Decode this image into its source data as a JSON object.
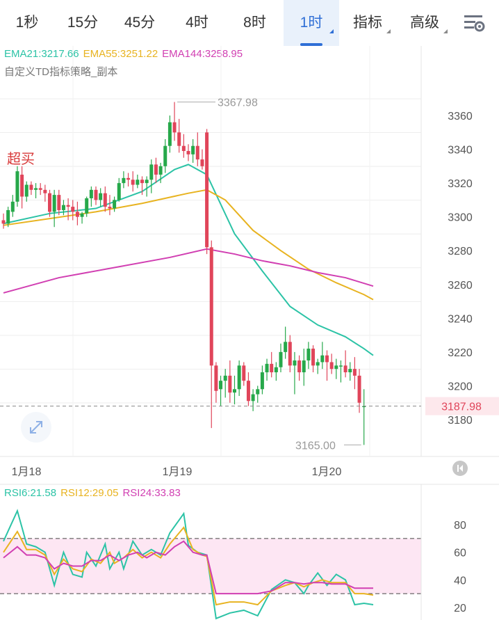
{
  "tabs": [
    {
      "label": "1秒",
      "active": false,
      "dropdown": false
    },
    {
      "label": "15分",
      "active": false,
      "dropdown": false
    },
    {
      "label": "45分",
      "active": false,
      "dropdown": false
    },
    {
      "label": "4时",
      "active": false,
      "dropdown": false
    },
    {
      "label": "8时",
      "active": false,
      "dropdown": false
    },
    {
      "label": "1时",
      "active": true,
      "dropdown": true
    },
    {
      "label": "指标",
      "active": false,
      "dropdown": true
    },
    {
      "label": "高级",
      "active": false,
      "dropdown": true
    }
  ],
  "settings_icon": "settings-sliders-icon",
  "ema_legend": [
    {
      "label": "EMA21:3217.66",
      "color": "#2cc3a6"
    },
    {
      "label": "EMA55:3251.22",
      "color": "#e8b320"
    },
    {
      "label": "EMA144:3258.95",
      "color": "#d13fb2"
    }
  ],
  "strategy_label": "自定义TD指标策略_副本",
  "signal_label": "超买",
  "rsi_legend": [
    {
      "label": "RSI6:21.58",
      "color": "#2cc3a6"
    },
    {
      "label": "RSI12:29.05",
      "color": "#e8b320"
    },
    {
      "label": "RSI24:33.83",
      "color": "#d13fb2"
    }
  ],
  "colors": {
    "up": "#26a84a",
    "down": "#e0455a"
  },
  "chart_data": {
    "type": "candlestick",
    "price_axis": {
      "ticks": [
        "3360",
        "3340",
        "3320",
        "3300",
        "3280",
        "3260",
        "3240",
        "3220",
        "3200",
        "3180"
      ],
      "range": [
        3168,
        3370
      ]
    },
    "x_ticks": [
      "1月18",
      "1月19",
      "1月20"
    ],
    "high_label": "3367.98",
    "low_label": "3165.00",
    "current_price": "3187.98",
    "candles": [
      [
        3298,
        3302,
        3293,
        3296
      ],
      [
        3296,
        3306,
        3294,
        3304
      ],
      [
        3303,
        3313,
        3300,
        3309
      ],
      [
        3309,
        3330,
        3306,
        3327
      ],
      [
        3325,
        3330,
        3305,
        3312
      ],
      [
        3312,
        3321,
        3309,
        3319
      ],
      [
        3319,
        3321,
        3313,
        3316
      ],
      [
        3316,
        3320,
        3311,
        3317
      ],
      [
        3317,
        3320,
        3313,
        3316
      ],
      [
        3316,
        3319,
        3309,
        3314
      ],
      [
        3314,
        3316,
        3300,
        3303
      ],
      [
        3303,
        3316,
        3294,
        3313
      ],
      [
        3313,
        3316,
        3301,
        3304
      ],
      [
        3304,
        3310,
        3301,
        3307
      ],
      [
        3307,
        3311,
        3298,
        3306
      ],
      [
        3306,
        3310,
        3298,
        3303
      ],
      [
        3303,
        3309,
        3295,
        3300
      ],
      [
        3300,
        3303,
        3296,
        3302
      ],
      [
        3302,
        3312,
        3300,
        3311
      ],
      [
        3311,
        3318,
        3306,
        3316
      ],
      [
        3316,
        3318,
        3307,
        3310
      ],
      [
        3310,
        3317,
        3306,
        3314
      ],
      [
        3314,
        3318,
        3303,
        3306
      ],
      [
        3306,
        3313,
        3301,
        3305
      ],
      [
        3305,
        3312,
        3303,
        3310
      ],
      [
        3310,
        3323,
        3309,
        3320
      ],
      [
        3320,
        3327,
        3317,
        3323
      ],
      [
        3323,
        3326,
        3318,
        3322
      ],
      [
        3322,
        3327,
        3315,
        3319
      ],
      [
        3319,
        3325,
        3317,
        3322
      ],
      [
        3322,
        3324,
        3313,
        3320
      ],
      [
        3320,
        3324,
        3312,
        3322
      ],
      [
        3322,
        3334,
        3314,
        3331
      ],
      [
        3331,
        3335,
        3320,
        3325
      ],
      [
        3325,
        3332,
        3320,
        3330
      ],
      [
        3330,
        3346,
        3326,
        3342
      ],
      [
        3342,
        3360,
        3338,
        3356
      ],
      [
        3356,
        3368,
        3345,
        3350
      ],
      [
        3350,
        3358,
        3338,
        3342
      ],
      [
        3342,
        3349,
        3335,
        3339
      ],
      [
        3339,
        3343,
        3333,
        3337
      ],
      [
        3337,
        3346,
        3332,
        3342
      ],
      [
        3342,
        3350,
        3330,
        3334
      ],
      [
        3334,
        3340,
        3328,
        3330
      ],
      [
        3350,
        3352,
        3278,
        3282
      ],
      [
        3282,
        3286,
        3175,
        3212
      ],
      [
        3212,
        3214,
        3190,
        3197
      ],
      [
        3198,
        3206,
        3188,
        3203
      ],
      [
        3203,
        3210,
        3193,
        3206
      ],
      [
        3206,
        3215,
        3190,
        3196
      ],
      [
        3196,
        3206,
        3189,
        3198
      ],
      [
        3198,
        3215,
        3194,
        3212
      ],
      [
        3212,
        3214,
        3200,
        3203
      ],
      [
        3203,
        3208,
        3188,
        3191
      ],
      [
        3191,
        3198,
        3185,
        3195
      ],
      [
        3195,
        3200,
        3190,
        3198
      ],
      [
        3198,
        3212,
        3195,
        3208
      ],
      [
        3208,
        3216,
        3203,
        3213
      ],
      [
        3213,
        3220,
        3205,
        3208
      ],
      [
        3208,
        3214,
        3203,
        3211
      ],
      [
        3211,
        3225,
        3208,
        3220
      ],
      [
        3220,
        3235,
        3216,
        3226
      ],
      [
        3226,
        3230,
        3208,
        3212
      ],
      [
        3212,
        3220,
        3195,
        3215
      ],
      [
        3215,
        3218,
        3203,
        3208
      ],
      [
        3208,
        3222,
        3200,
        3215
      ],
      [
        3215,
        3226,
        3210,
        3222
      ],
      [
        3222,
        3224,
        3208,
        3212
      ],
      [
        3212,
        3216,
        3207,
        3214
      ],
      [
        3214,
        3226,
        3210,
        3218
      ],
      [
        3218,
        3221,
        3203,
        3214
      ],
      [
        3214,
        3219,
        3207,
        3210
      ],
      [
        3210,
        3216,
        3204,
        3212
      ],
      [
        3212,
        3215,
        3202,
        3212
      ],
      [
        3212,
        3221,
        3205,
        3208
      ],
      [
        3208,
        3214,
        3203,
        3210
      ],
      [
        3210,
        3217,
        3198,
        3206
      ],
      [
        3206,
        3210,
        3184,
        3190
      ],
      [
        3188,
        3198,
        3165,
        3188
      ]
    ],
    "ema": [
      {
        "name": "EMA21",
        "color": "#2cc3a6",
        "points": [
          [
            0,
            3296
          ],
          [
            10,
            3302
          ],
          [
            20,
            3305
          ],
          [
            30,
            3315
          ],
          [
            37,
            3328
          ],
          [
            40,
            3331
          ],
          [
            44,
            3325
          ],
          [
            50,
            3290
          ],
          [
            56,
            3268
          ],
          [
            62,
            3247
          ],
          [
            68,
            3236
          ],
          [
            74,
            3229
          ],
          [
            78,
            3222
          ],
          [
            80,
            3218
          ]
        ]
      },
      {
        "name": "EMA55",
        "color": "#e8b320",
        "points": [
          [
            0,
            3295
          ],
          [
            10,
            3299
          ],
          [
            20,
            3303
          ],
          [
            30,
            3308
          ],
          [
            40,
            3314
          ],
          [
            44,
            3316
          ],
          [
            48,
            3310
          ],
          [
            54,
            3292
          ],
          [
            60,
            3280
          ],
          [
            66,
            3269
          ],
          [
            72,
            3261
          ],
          [
            78,
            3254
          ],
          [
            80,
            3251
          ]
        ]
      },
      {
        "name": "EMA144",
        "color": "#d13fb2",
        "points": [
          [
            0,
            3255
          ],
          [
            12,
            3264
          ],
          [
            24,
            3270
          ],
          [
            36,
            3276
          ],
          [
            44,
            3281
          ],
          [
            50,
            3278
          ],
          [
            56,
            3274
          ],
          [
            62,
            3271
          ],
          [
            68,
            3267
          ],
          [
            74,
            3264
          ],
          [
            80,
            3259
          ]
        ]
      }
    ],
    "rsi_axis": {
      "ticks": [
        "80",
        "60",
        "40",
        "20"
      ],
      "range": [
        10,
        90
      ],
      "band": [
        30,
        70
      ]
    },
    "rsi": [
      {
        "name": "RSI6",
        "color": "#2cc3a6",
        "points": [
          [
            0,
            68
          ],
          [
            3,
            90
          ],
          [
            5,
            66
          ],
          [
            7,
            64
          ],
          [
            9,
            60
          ],
          [
            11,
            36
          ],
          [
            13,
            60
          ],
          [
            15,
            44
          ],
          [
            17,
            42
          ],
          [
            18,
            60
          ],
          [
            20,
            50
          ],
          [
            22,
            66
          ],
          [
            23,
            48
          ],
          [
            25,
            60
          ],
          [
            26,
            48
          ],
          [
            28,
            68
          ],
          [
            30,
            58
          ],
          [
            32,
            62
          ],
          [
            34,
            58
          ],
          [
            36,
            74
          ],
          [
            39,
            88
          ],
          [
            40,
            65
          ],
          [
            42,
            60
          ],
          [
            44,
            58
          ],
          [
            46,
            12
          ],
          [
            49,
            16
          ],
          [
            52,
            18
          ],
          [
            55,
            14
          ],
          [
            58,
            33
          ],
          [
            61,
            40
          ],
          [
            63,
            38
          ],
          [
            65,
            30
          ],
          [
            66,
            36
          ],
          [
            68,
            45
          ],
          [
            70,
            36
          ],
          [
            72,
            44
          ],
          [
            74,
            40
          ],
          [
            76,
            22
          ],
          [
            78,
            23
          ],
          [
            80,
            22
          ]
        ]
      },
      {
        "name": "RSI12",
        "color": "#e8b320",
        "points": [
          [
            0,
            60
          ],
          [
            3,
            75
          ],
          [
            5,
            62
          ],
          [
            7,
            62
          ],
          [
            9,
            58
          ],
          [
            11,
            44
          ],
          [
            13,
            55
          ],
          [
            15,
            48
          ],
          [
            17,
            46
          ],
          [
            19,
            55
          ],
          [
            21,
            52
          ],
          [
            23,
            60
          ],
          [
            24,
            52
          ],
          [
            26,
            56
          ],
          [
            28,
            62
          ],
          [
            30,
            56
          ],
          [
            32,
            60
          ],
          [
            34,
            56
          ],
          [
            36,
            66
          ],
          [
            39,
            78
          ],
          [
            41,
            62
          ],
          [
            43,
            58
          ],
          [
            44,
            57
          ],
          [
            46,
            22
          ],
          [
            49,
            24
          ],
          [
            52,
            24
          ],
          [
            55,
            22
          ],
          [
            58,
            32
          ],
          [
            61,
            36
          ],
          [
            63,
            38
          ],
          [
            65,
            35
          ],
          [
            67,
            38
          ],
          [
            69,
            40
          ],
          [
            71,
            38
          ],
          [
            74,
            38
          ],
          [
            76,
            30
          ],
          [
            78,
            30
          ],
          [
            80,
            29
          ]
        ]
      },
      {
        "name": "RSI24",
        "color": "#d13fb2",
        "points": [
          [
            0,
            56
          ],
          [
            3,
            64
          ],
          [
            5,
            58
          ],
          [
            7,
            58
          ],
          [
            9,
            56
          ],
          [
            11,
            48
          ],
          [
            13,
            52
          ],
          [
            15,
            50
          ],
          [
            17,
            50
          ],
          [
            19,
            54
          ],
          [
            21,
            54
          ],
          [
            23,
            58
          ],
          [
            25,
            54
          ],
          [
            27,
            58
          ],
          [
            29,
            60
          ],
          [
            31,
            56
          ],
          [
            33,
            60
          ],
          [
            35,
            58
          ],
          [
            37,
            64
          ],
          [
            39,
            68
          ],
          [
            41,
            60
          ],
          [
            43,
            58
          ],
          [
            44,
            58
          ],
          [
            46,
            30
          ],
          [
            49,
            30
          ],
          [
            52,
            30
          ],
          [
            55,
            30
          ],
          [
            58,
            32
          ],
          [
            61,
            38
          ],
          [
            63,
            38
          ],
          [
            65,
            37
          ],
          [
            67,
            38
          ],
          [
            69,
            38
          ],
          [
            71,
            37
          ],
          [
            74,
            37
          ],
          [
            76,
            34
          ],
          [
            78,
            34
          ],
          [
            80,
            34
          ]
        ]
      }
    ]
  }
}
